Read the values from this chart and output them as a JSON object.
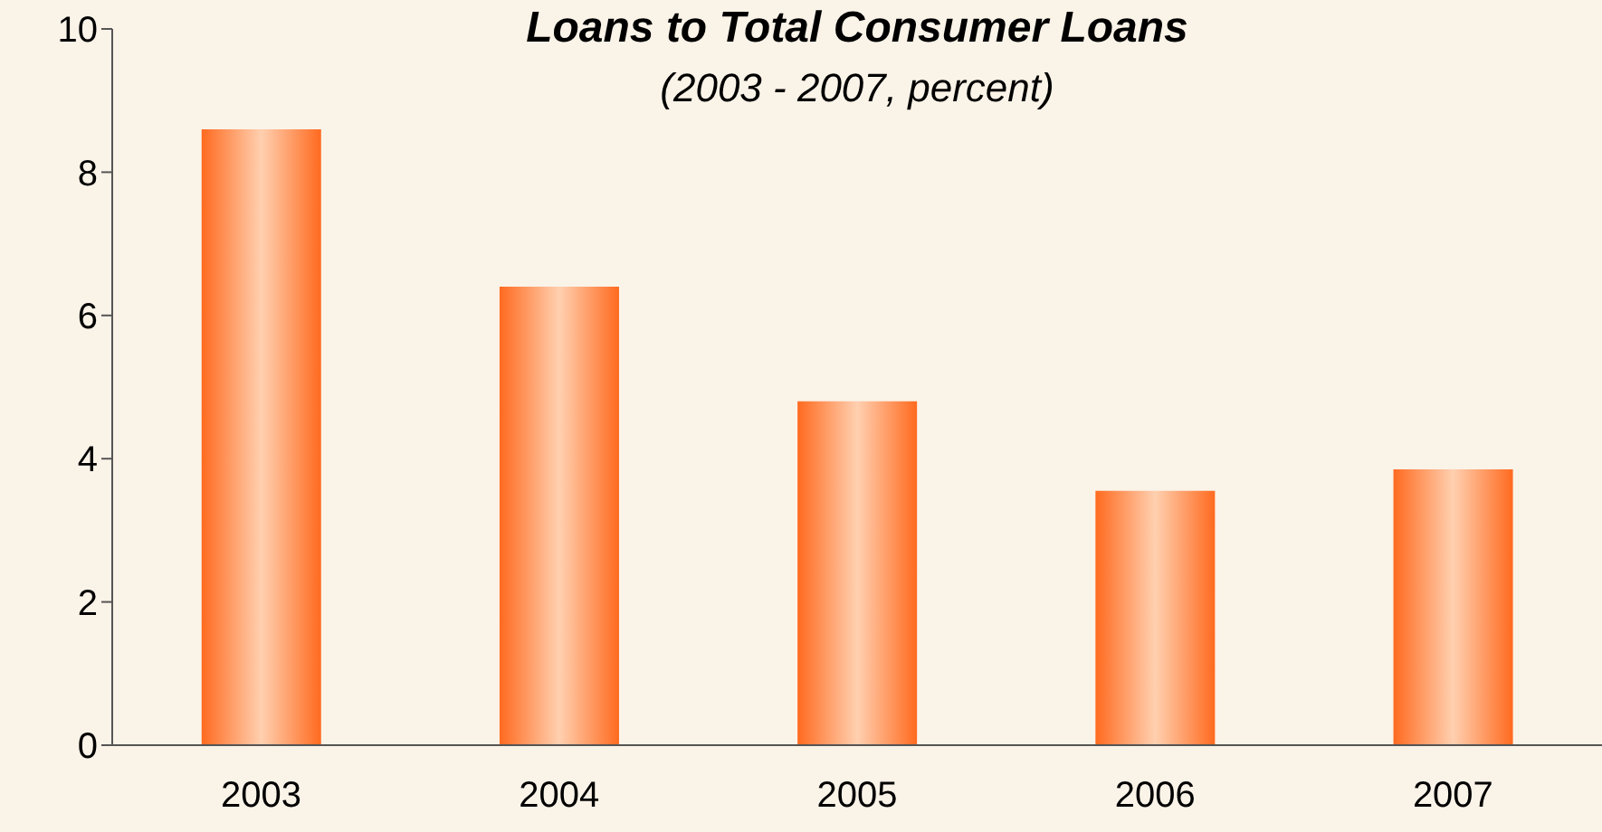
{
  "chart_data": {
    "type": "bar",
    "title": "Loans to Total Consumer Loans",
    "subtitle": "(2003 - 2007, percent)",
    "categories": [
      "2003",
      "2004",
      "2005",
      "2006",
      "2007"
    ],
    "values": [
      8.6,
      6.4,
      4.8,
      3.55,
      3.85
    ],
    "color": "#ff6a1f",
    "ylim": [
      0,
      10
    ],
    "yticks": [
      0,
      2,
      4,
      6,
      8,
      10
    ],
    "grid": false,
    "legend": false
  }
}
